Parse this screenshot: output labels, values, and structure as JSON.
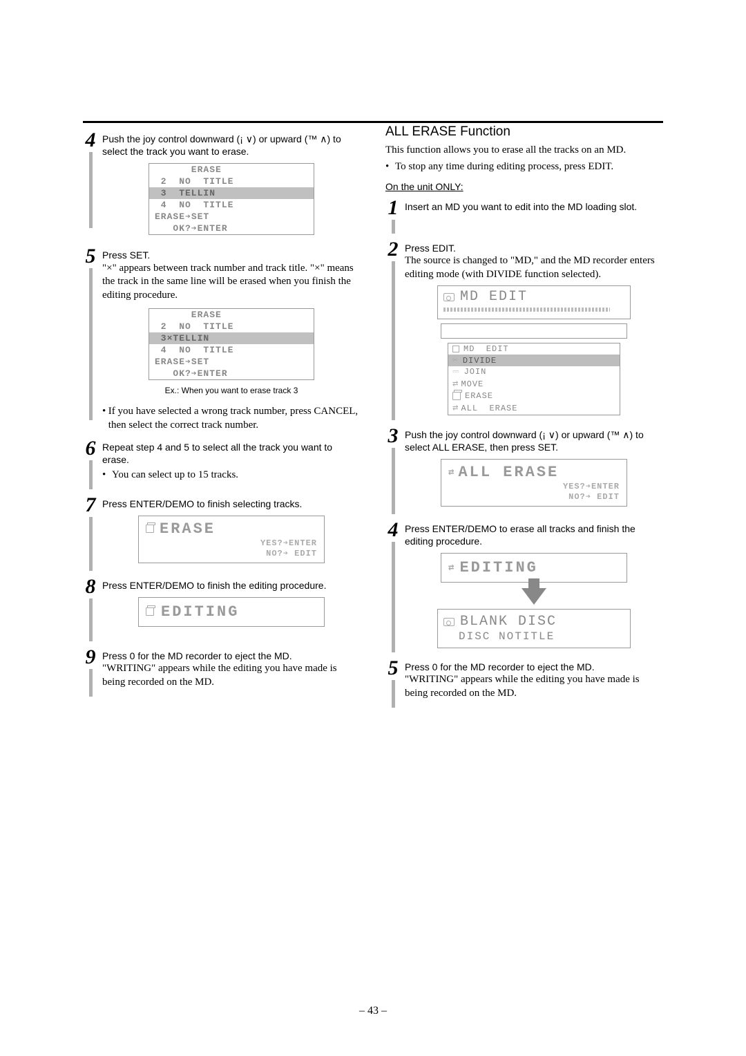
{
  "page_number": "– 43 –",
  "left": {
    "step4": {
      "line": "Push the joy control downward (¡        ∨) or upward (™        ∧) to select the track you want to erase.",
      "lcd": {
        "rows": [
          {
            "txt": "      ERASE"
          },
          {
            "txt": " 2  NO  TITLE"
          },
          {
            "txt": " 3  TELLIN",
            "hl": true
          },
          {
            "txt": " 4  NO  TITLE"
          },
          {
            "txt": "ERASE➔SET"
          },
          {
            "txt": "   OK?➔ENTER"
          }
        ]
      }
    },
    "step5": {
      "first": "Press SET.",
      "para": "\"×\" appears between track number and track title. \"×\" means the track in the same line will be erased when you finish the editing procedure.",
      "lcd": {
        "rows": [
          {
            "txt": "      ERASE"
          },
          {
            "txt": " 2  NO  TITLE"
          },
          {
            "txt": " 3×TELLIN",
            "hl": true
          },
          {
            "txt": " 4  NO  TITLE"
          },
          {
            "txt": "ERASE➔SET"
          },
          {
            "txt": "   OK?➔ENTER"
          }
        ]
      },
      "caption": "Ex.: When you want to erase track 3",
      "bullet": "If you have selected a wrong track number, press CANCEL, then select the correct track number."
    },
    "step6": {
      "first": "Repeat step 4 and 5 to select all the track you want to erase.",
      "bullet": "You can select up to 15 tracks."
    },
    "step7": {
      "first": "Press ENTER/DEMO to finish selecting tracks.",
      "lcd_big": {
        "big": "ERASE",
        "sub1": "YES?➔ENTER",
        "sub2": " NO?➔ EDIT"
      }
    },
    "step8": {
      "first": "Press ENTER/DEMO to finish the editing procedure.",
      "lcd_line": "EDITING"
    },
    "step9": {
      "first": "Press 0  for the MD recorder to eject the MD.",
      "para": "\"WRITING\" appears while the editing you have made is being recorded on the MD."
    }
  },
  "right": {
    "title": "ALL ERASE Function",
    "intro": "This function allows you to erase all the tracks on an MD.",
    "intro_bullet": "To stop any time during editing process, press EDIT.",
    "unit_only": "On the unit ONLY:",
    "step1": {
      "first": "Insert an MD you want to edit into the MD loading slot."
    },
    "step2": {
      "first": "Press EDIT.",
      "para": "The source is changed to \"MD,\" and the MD recorder enters editing mode (with DIVIDE function selected).",
      "lcd_top": "MD EDIT",
      "menu": {
        "rows": [
          {
            "icon": "square",
            "txt": "MD  EDIT"
          },
          {
            "icon": "scissors",
            "txt": "DIVIDE",
            "hl": true
          },
          {
            "icon": "link",
            "txt": "JOIN"
          },
          {
            "icon": "arrows",
            "txt": "MOVE"
          },
          {
            "icon": "trash",
            "txt": "ERASE"
          },
          {
            "icon": "arrows",
            "txt": "ALL  ERASE"
          }
        ]
      }
    },
    "step3": {
      "first": "Push the joy control downward (¡        ∨) or upward (™        ∧) to select  ALL ERASE,  then press SET.",
      "lcd_big": {
        "big": "ALL ERASE",
        "sub1": "YES?➔ENTER",
        "sub2": " NO?➔ EDIT"
      }
    },
    "step4": {
      "first": "Press ENTER/DEMO to erase all tracks and finish the editing procedure.",
      "lcd_line": "EDITING",
      "blank1": "BLANK DISC",
      "blank2": "DISC NOTITLE"
    },
    "step5": {
      "first": "Press 0  for the MD recorder to eject the MD.",
      "para": "\"WRITING\" appears while the editing you have made is being recorded on the MD."
    }
  }
}
